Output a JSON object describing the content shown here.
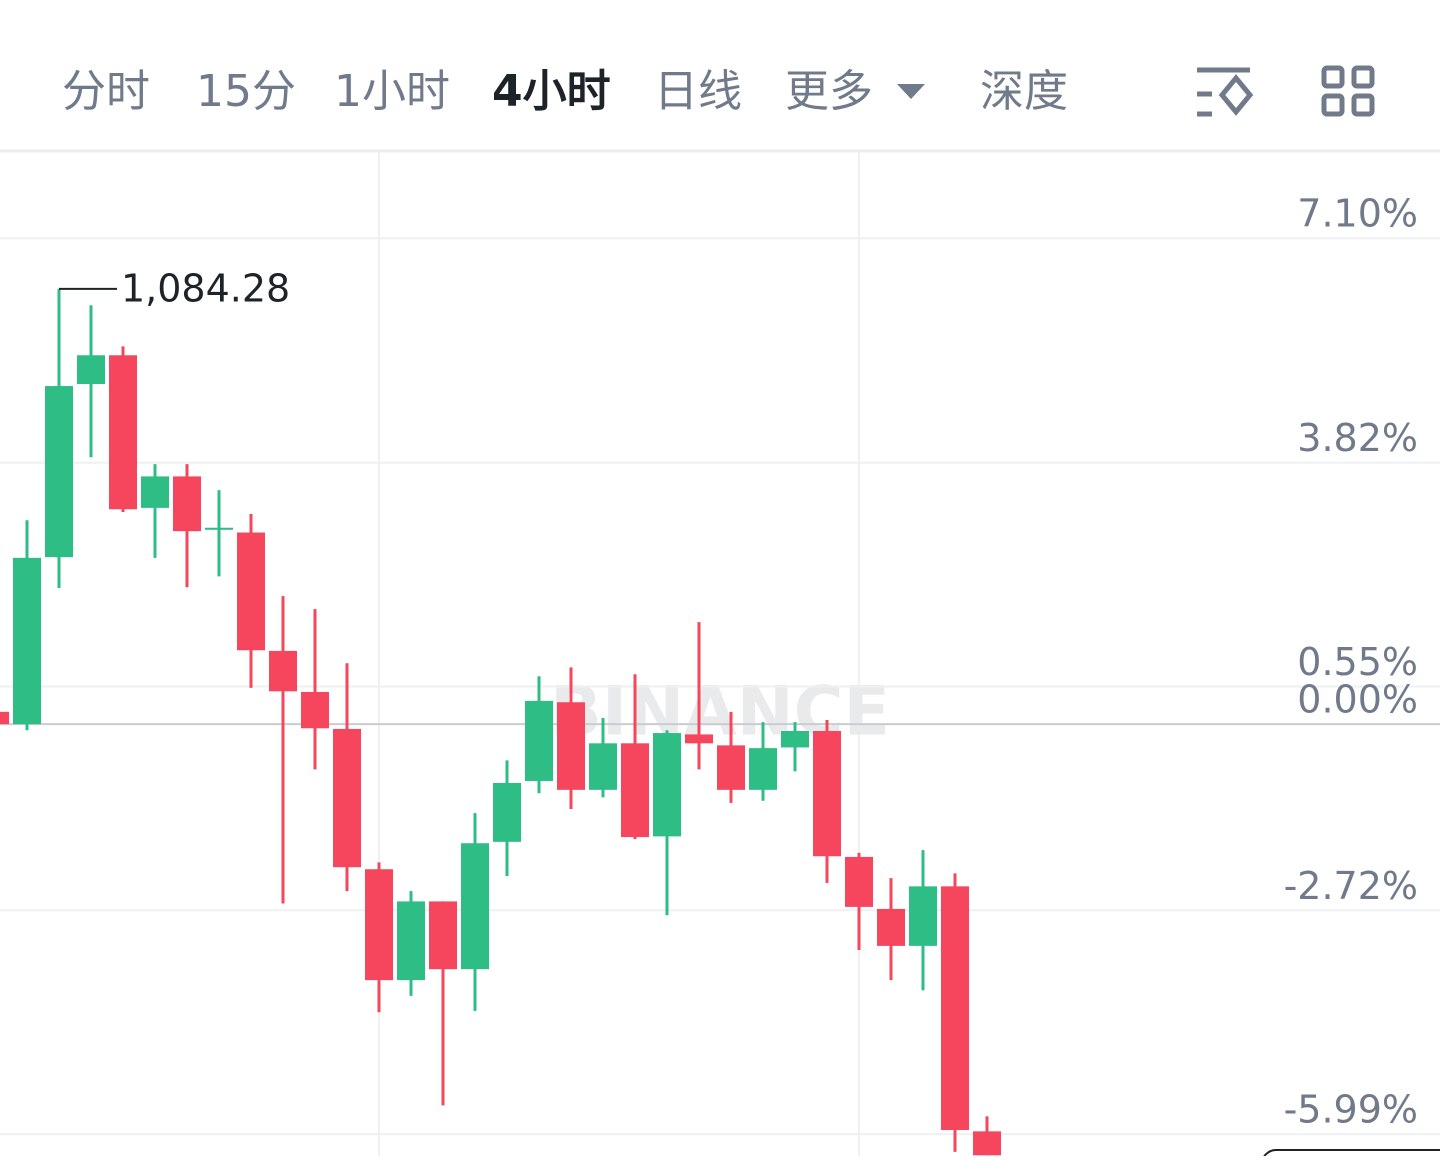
{
  "tabs": {
    "items": [
      "分时",
      "15分",
      "1小时",
      "4小时",
      "日线",
      "更多",
      "深度"
    ],
    "active": 3
  },
  "chart_data": {
    "type": "candlestick",
    "watermark": "BINANCE",
    "high_label": "1,084.28",
    "high_index": 2,
    "up_color": "#2ebd85",
    "down_color": "#f6465d",
    "ylim": [
      -6.31,
      8.36
    ],
    "yticks": [
      {
        "value": 7.1,
        "label": "7.10%"
      },
      {
        "value": 3.82,
        "label": "3.82%"
      },
      {
        "value": 0.55,
        "label": "0.55%"
      },
      {
        "value": 0,
        "label": "0.00%"
      },
      {
        "value": -2.72,
        "label": "-2.72%"
      },
      {
        "value": -5.99,
        "label": "-5.99%"
      }
    ],
    "open": [
      0.18,
      0.0,
      2.44,
      4.97,
      5.39,
      3.16,
      3.62,
      2.84,
      2.8,
      1.07,
      0.47,
      -0.07,
      -2.12,
      -3.74,
      -2.59,
      -3.58,
      -1.72,
      -0.83,
      0.32,
      -0.96,
      -0.28,
      -1.64,
      -0.15,
      -0.31,
      -0.96,
      -0.34,
      -0.1,
      -1.94,
      -2.7,
      -3.24,
      -2.37,
      -5.95
    ],
    "high": [
      0.18,
      2.98,
      6.36,
      6.12,
      5.52,
      3.8,
      3.8,
      3.42,
      3.07,
      1.87,
      1.68,
      0.89,
      -2.02,
      -2.44,
      -2.59,
      -1.3,
      -0.53,
      0.7,
      0.83,
      0.09,
      0.73,
      -0.09,
      1.49,
      0.18,
      0.03,
      0.03,
      0.06,
      -1.88,
      -2.25,
      -1.84,
      -2.18,
      -5.73
    ],
    "low": [
      0.0,
      -0.09,
      1.99,
      3.9,
      3.1,
      2.43,
      2.0,
      2.16,
      0.53,
      -2.62,
      -0.66,
      -2.44,
      -4.21,
      -3.97,
      -5.57,
      -4.19,
      -2.22,
      -1.01,
      -1.24,
      -1.07,
      -1.68,
      -2.79,
      -0.66,
      -1.15,
      -1.12,
      -0.69,
      -2.32,
      -3.3,
      -3.74,
      -3.89,
      -6.25,
      -6.3
    ],
    "close": [
      0.0,
      2.43,
      4.94,
      5.39,
      3.14,
      3.62,
      2.82,
      2.87,
      1.08,
      0.48,
      -0.06,
      -2.09,
      -3.74,
      -2.59,
      -3.58,
      -1.74,
      -0.86,
      0.34,
      -0.96,
      -0.28,
      -1.65,
      -0.13,
      -0.28,
      -0.96,
      -0.35,
      -0.1,
      -1.93,
      -2.67,
      -3.24,
      -2.37,
      -5.93,
      -6.3
    ]
  }
}
